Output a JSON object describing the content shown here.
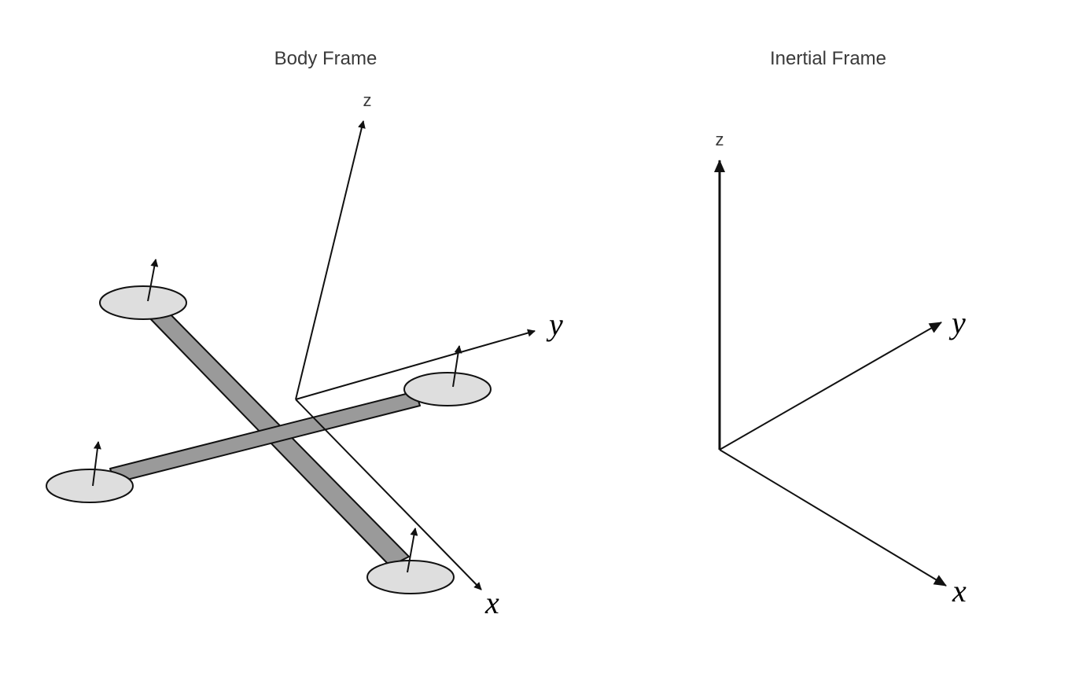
{
  "body_frame": {
    "title": "Body Frame",
    "z_label": "z",
    "y_label": "y",
    "x_label": "x"
  },
  "inertial_frame": {
    "title": "Inertial Frame",
    "z_label": "z",
    "y_label": "y",
    "x_label": "x"
  },
  "colors": {
    "arm_fill": "#9a9a9a",
    "rotor_fill": "#dedede",
    "stroke": "#111111"
  }
}
